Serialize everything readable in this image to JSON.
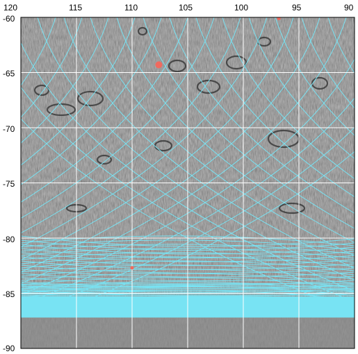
{
  "map": {
    "lon_ticks": [
      "120",
      "115",
      "110",
      "105",
      "100",
      "95",
      "90"
    ],
    "lat_ticks": [
      "-60",
      "-65",
      "-70",
      "-75",
      "-80",
      "-85",
      "-90"
    ],
    "lon_range": [
      120,
      90
    ],
    "lat_range": [
      -60,
      -90
    ],
    "colors": {
      "grid": "#ffffff",
      "track": "#78e3f3",
      "marker": "#f06a5f",
      "basemap": "#7d7d7d",
      "label": "#000000"
    },
    "markers": [
      {
        "name": "marker-large",
        "lon": 107.6,
        "lat": -64.3
      },
      {
        "name": "marker-small",
        "lon": 110.0,
        "lat": -82.7
      },
      {
        "name": "marker-top-edge",
        "lon": 96.8,
        "lat": -60.1
      }
    ],
    "dense_track_band": {
      "lat_from": -85.3,
      "lat_to": -87.2
    }
  }
}
